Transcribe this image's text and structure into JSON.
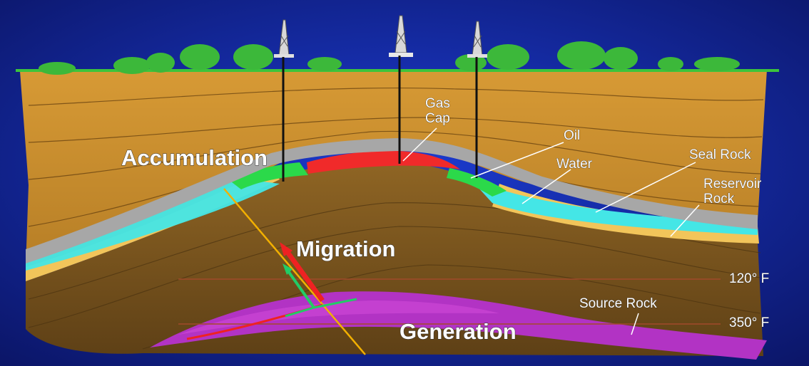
{
  "labels": {
    "gas_cap_line1": "Gas",
    "gas_cap_line2": "Cap",
    "oil": "Oil",
    "water": "Water",
    "seal_rock": "Seal Rock",
    "reservoir_rock_line1": "Reservoir",
    "reservoir_rock_line2": "Rock",
    "accumulation": "Accumulation",
    "migration": "Migration",
    "generation": "Generation",
    "source_rock": "Source Rock",
    "temp_upper": "120° F",
    "temp_lower": "350° F"
  },
  "colors": {
    "background": "#10239a",
    "surface": "#3cc43c",
    "upper_strata": "#c88f2c",
    "lower_strata": "#7f5820",
    "seal_rock": "#a7a7a7",
    "reservoir_rock": "#f2c55a",
    "water": "#44e6e6",
    "oil": "#2bd94a",
    "gas_cap": "#f02a2a",
    "source_rock": "#b233c4",
    "fault": "#f2b000",
    "migration_arrow_red": "#ee2222",
    "migration_arrow_green": "#22cc66"
  },
  "icons": [
    "drilling-derrick-icon",
    "tree-icon"
  ]
}
